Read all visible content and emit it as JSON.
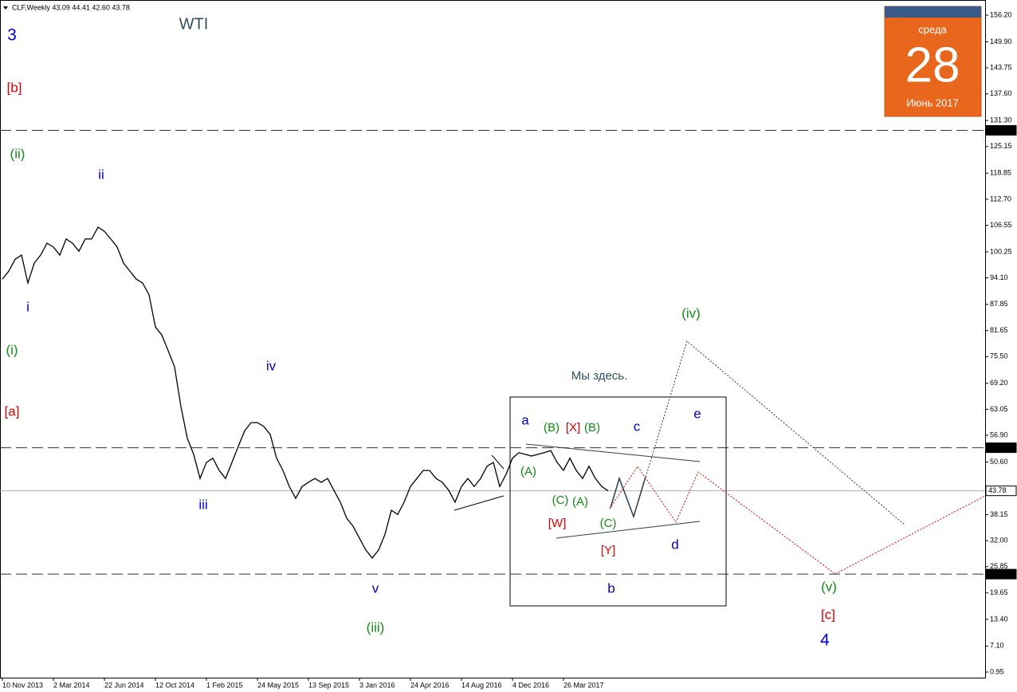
{
  "chart_data": {
    "type": "line",
    "header": "CLF,Weekly  43.09 44.41 42.60 43.78",
    "title": "WTI",
    "calendar": {
      "weekday": "среда",
      "day": "28",
      "month": "Июнь 2017"
    },
    "color": "#000000",
    "categories": [
      "10 Nov 2013",
      null,
      null,
      null,
      null,
      null,
      null,
      null,
      "2 Mar 2014",
      null,
      null,
      null,
      null,
      null,
      null,
      null,
      "22 Jun 2014",
      null,
      null,
      null,
      null,
      null,
      null,
      null,
      "12 Oct 2014",
      null,
      null,
      null,
      null,
      null,
      null,
      null,
      "1 Feb 2015",
      null,
      null,
      null,
      null,
      null,
      null,
      null,
      "24 May 2015",
      null,
      null,
      null,
      null,
      null,
      null,
      null,
      "13 Sep 2015",
      null,
      null,
      null,
      null,
      null,
      null,
      null,
      "3 Jan 2016",
      null,
      null,
      null,
      null,
      null,
      null,
      null,
      "24 Apr 2016",
      null,
      null,
      null,
      null,
      null,
      null,
      null,
      "14 Aug 2016",
      null,
      null,
      null,
      null,
      null,
      null,
      null,
      "4 Dec 2016",
      null,
      null,
      null,
      null,
      null,
      null,
      null,
      "26 Mar 2017",
      null,
      null,
      null,
      null,
      null,
      null,
      null
    ],
    "values": [
      93.8,
      95.7,
      98.5,
      99.5,
      92.9,
      97.6,
      99.5,
      102.3,
      101.4,
      99.5,
      103.3,
      102.3,
      100.4,
      103.3,
      103.3,
      106.1,
      105.1,
      103.3,
      101.4,
      97.6,
      95.7,
      93.8,
      92.9,
      90.1,
      82.5,
      80.6,
      76.9,
      73.1,
      63.7,
      56.2,
      52.4,
      46.7,
      50.5,
      51.5,
      48.6,
      46.7,
      50.5,
      54.3,
      58.0,
      59.9,
      59.9,
      59.0,
      57.1,
      51.5,
      48.6,
      44.8,
      42.0,
      44.8,
      45.8,
      46.7,
      45.8,
      46.7,
      43.9,
      41.1,
      37.3,
      35.4,
      32.6,
      29.8,
      27.9,
      29.8,
      33.5,
      39.2,
      38.2,
      41.1,
      44.8,
      46.7,
      48.6,
      48.6,
      46.7,
      45.8,
      43.9,
      41.1,
      44.8,
      46.7,
      44.8,
      46.7,
      49.6,
      50.5,
      44.8,
      47.7,
      51.5,
      52.8,
      52.4,
      52.0,
      52.4,
      52.8,
      53.3,
      50.5,
      48.6,
      51.5,
      48.6,
      46.7,
      49.6,
      46.7,
      44.8,
      43.78
    ],
    "ylim": [
      -0.37,
      159.78
    ],
    "yticks": [
      {
        "value": 156.2,
        "label": "156.20"
      },
      {
        "value": 149.9,
        "label": "149.90"
      },
      {
        "value": 143.75,
        "label": "143.75"
      },
      {
        "value": 137.6,
        "label": "137.60"
      },
      {
        "value": 131.3,
        "label": "131.30"
      },
      {
        "value": 125.15,
        "label": "125.15"
      },
      {
        "value": 118.85,
        "label": "118.85"
      },
      {
        "value": 112.7,
        "label": "112.70"
      },
      {
        "value": 106.55,
        "label": "106.55"
      },
      {
        "value": 100.25,
        "label": "100.25"
      },
      {
        "value": 94.1,
        "label": "94.10"
      },
      {
        "value": 87.85,
        "label": "87.85"
      },
      {
        "value": 81.65,
        "label": "81.65"
      },
      {
        "value": 75.5,
        "label": "75.50"
      },
      {
        "value": 69.2,
        "label": "69.20"
      },
      {
        "value": 63.05,
        "label": "63.05"
      },
      {
        "value": 56.9,
        "label": "56.90"
      },
      {
        "value": 50.6,
        "label": "50.60"
      },
      {
        "value": 38.15,
        "label": "38.15"
      },
      {
        "value": 32.0,
        "label": "32.00"
      },
      {
        "value": 25.85,
        "label": "25.85"
      },
      {
        "value": 19.65,
        "label": "19.65"
      },
      {
        "value": 13.4,
        "label": "13.40"
      },
      {
        "value": 7.1,
        "label": "7.10"
      },
      {
        "value": 0.95,
        "label": "0.95"
      }
    ],
    "levels": [
      128.98,
      53.97,
      43.78,
      {
        "value": 24.1,
        "label": "24.10"
      }
    ],
    "annotations": [
      "3",
      "[b]",
      "(ii)",
      "ii",
      "i",
      "(i)",
      "[a]",
      "iv",
      "iii",
      "v",
      "(iii)",
      "Мы здесь.",
      "a",
      "(B)",
      "[X]",
      "(B)",
      "c",
      "e",
      "(A)",
      "(C)",
      "(A)",
      "[W]",
      "(C)",
      "[Y]",
      "d",
      "b",
      "(iv)",
      "(v)",
      "[c]",
      "4"
    ]
  }
}
